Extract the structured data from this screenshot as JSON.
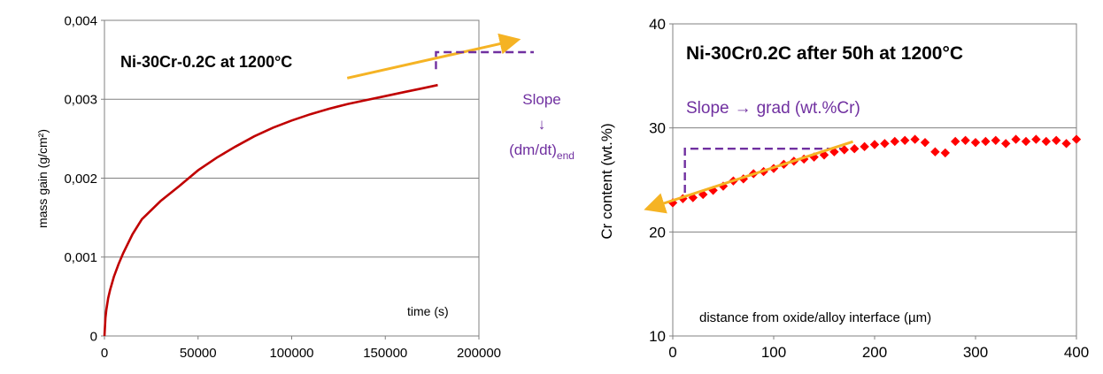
{
  "chart_data": [
    {
      "type": "line",
      "title": "Ni-30Cr-0.2C at 1200°C",
      "xlabel": "time (s)",
      "ylabel": "mass gain (g/cm²)",
      "xlim": [
        0,
        200000
      ],
      "ylim": [
        0,
        0.004
      ],
      "x_ticks": [
        "0",
        "50000",
        "100000",
        "150000",
        "200000"
      ],
      "y_ticks": [
        "0",
        "0,001",
        "0,002",
        "0,003",
        "0,004"
      ],
      "grid": true,
      "series_color": "#c00000",
      "series": [
        {
          "x": [
            0,
            500,
            1000,
            2000,
            3000,
            5000,
            7500,
            10000,
            15000,
            20000,
            30000,
            40000,
            50000,
            60000,
            70000,
            80000,
            90000,
            100000,
            110000,
            120000,
            130000,
            140000,
            150000,
            160000,
            170000,
            178000
          ],
          "y": [
            0,
            0.00023,
            0.00033,
            0.00048,
            0.00058,
            0.00075,
            0.00091,
            0.00105,
            0.00129,
            0.00148,
            0.00171,
            0.0019,
            0.0021,
            0.00226,
            0.0024,
            0.00253,
            0.00264,
            0.00273,
            0.00281,
            0.00288,
            0.00294,
            0.00299,
            0.00304,
            0.00309,
            0.00314,
            0.00318
          ]
        }
      ],
      "annotation": {
        "slope_label": "Slope",
        "arrow_glyph": "↓",
        "result_label": "(dm/dt)",
        "result_subscript": "end",
        "tangent_color": "#f5b324",
        "marker_color": "#7030a0",
        "tangent_line": {
          "x": [
            150000,
            178000
          ],
          "y": [
            0.00319,
            0.00359
          ]
        },
        "step_marker": {
          "x": [
            150000,
            178000
          ],
          "y": [
            0.00319,
            0.00359
          ]
        }
      }
    },
    {
      "type": "scatter",
      "title": "Ni-30Cr0.2C after 50h at 1200°C",
      "xlabel": "distance from oxide/alloy interface (µm)",
      "ylabel": "Cr content (wt.%)",
      "xlim": [
        0,
        400
      ],
      "ylim": [
        10,
        40
      ],
      "x_ticks": [
        "0",
        "100",
        "200",
        "300",
        "400"
      ],
      "y_ticks": [
        "10",
        "20",
        "30",
        "40"
      ],
      "grid": true,
      "marker_color": "#ff0000",
      "series": [
        {
          "x": [
            0,
            10,
            20,
            30,
            40,
            50,
            60,
            70,
            80,
            90,
            100,
            110,
            120,
            130,
            140,
            150,
            160,
            170,
            180,
            190,
            200,
            210,
            220,
            230,
            240,
            250,
            260,
            270,
            280,
            290,
            300,
            310,
            320,
            330,
            340,
            350,
            360,
            370,
            380,
            390,
            400
          ],
          "y": [
            22.8,
            23.2,
            23.3,
            23.6,
            24.0,
            24.4,
            24.9,
            25.1,
            25.6,
            25.8,
            26.1,
            26.5,
            26.8,
            27.0,
            27.2,
            27.4,
            27.7,
            27.9,
            28.0,
            28.2,
            28.4,
            28.5,
            28.7,
            28.8,
            28.9,
            28.6,
            27.7,
            27.6,
            28.7,
            28.8,
            28.6,
            28.7,
            28.8,
            28.5,
            28.9,
            28.7,
            28.9,
            28.7,
            28.8,
            28.5,
            28.9
          ]
        }
      ],
      "annotation": {
        "slope_label": "Slope",
        "arrow_glyph": "→",
        "result_label": "grad (wt.%Cr)",
        "tangent_color": "#f5b324",
        "marker_color": "#7030a0",
        "tangent_line": {
          "x": [
            0,
            175
          ],
          "y": [
            23.3,
            28.6
          ]
        },
        "step_marker": {
          "x": [
            12,
            175
          ],
          "y": [
            23.6,
            28.0
          ]
        }
      }
    }
  ]
}
